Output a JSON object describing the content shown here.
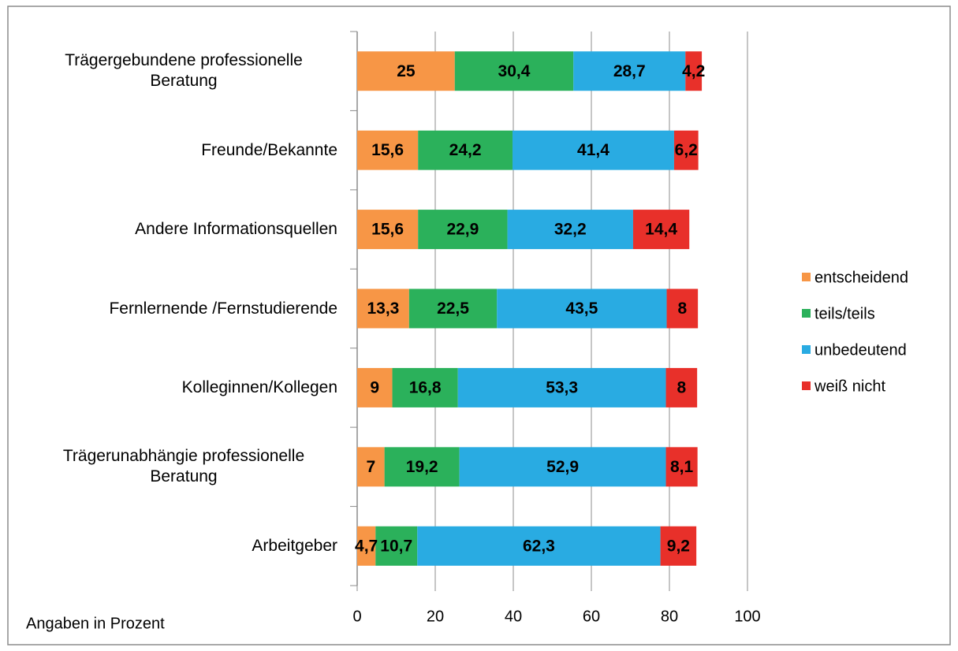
{
  "chart_data": {
    "type": "stacked_bar_horizontal",
    "categories": [
      "Trägergebundene professionelle Beratung",
      "Freunde/Bekannte",
      "Andere Informationsquellen",
      "Fernlernende /Fernstudierende",
      "Kolleginnen/Kollegen",
      "Trägerunabhängie professionelle Beratung",
      "Arbeitgeber"
    ],
    "series": [
      {
        "name": "entscheidend",
        "color": "#f79646",
        "values": [
          25,
          15.6,
          15.6,
          13.3,
          9,
          7,
          4.7
        ],
        "value_labels": [
          "25",
          "15,6",
          "15,6",
          "13,3",
          "9",
          "7",
          "4,7"
        ]
      },
      {
        "name": "teils/teils",
        "color": "#2bb15b",
        "values": [
          30.4,
          24.2,
          22.9,
          22.5,
          16.8,
          19.2,
          10.7
        ],
        "value_labels": [
          "30,4",
          "24,2",
          "22,9",
          "22,5",
          "16,8",
          "19,2",
          "10,7"
        ]
      },
      {
        "name": "unbedeutend",
        "color": "#29abe2",
        "values": [
          28.7,
          41.4,
          32.2,
          43.5,
          53.3,
          52.9,
          62.3
        ],
        "value_labels": [
          "28,7",
          "41,4",
          "32,2",
          "43,5",
          "53,3",
          "52,9",
          "62,3"
        ]
      },
      {
        "name": "weiß nicht",
        "color": "#e8302a",
        "values": [
          4.2,
          6.2,
          14.4,
          8,
          8,
          8.1,
          9.2
        ],
        "value_labels": [
          "4,2",
          "6,2",
          "14,4",
          "8",
          "8",
          "8,1",
          "9,2"
        ]
      }
    ],
    "xlim": [
      0,
      100
    ],
    "xticks": [
      0,
      20,
      40,
      60,
      80,
      100
    ],
    "grid": true,
    "legend": "right",
    "annotation": "Angaben in Prozent"
  }
}
